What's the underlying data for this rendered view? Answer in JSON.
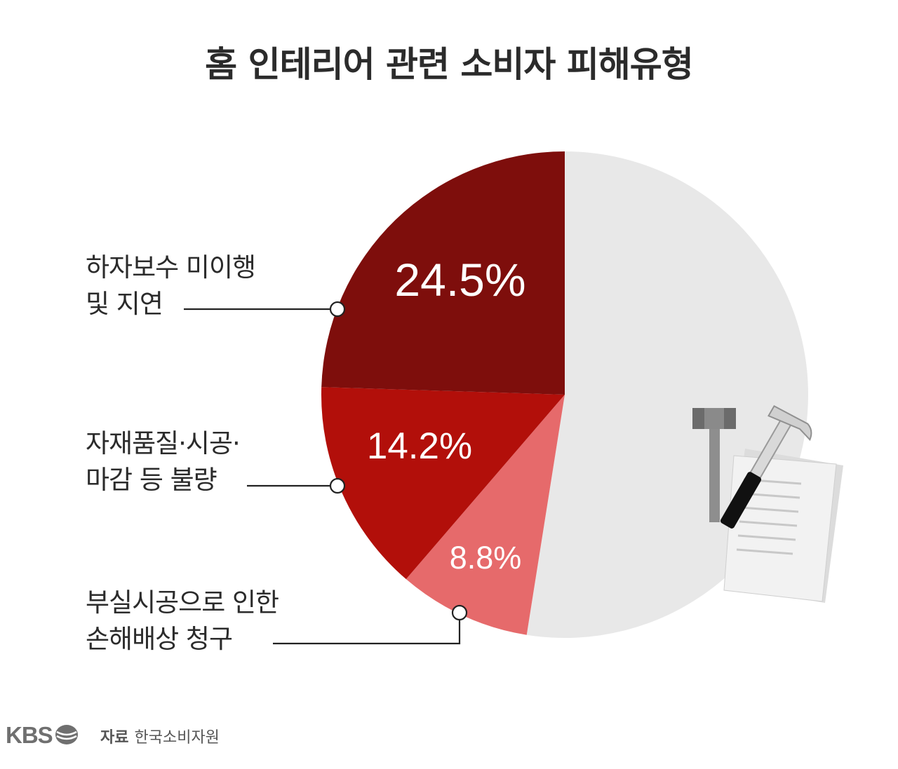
{
  "title": "홈 인테리어 관련 소비자 피해유형",
  "chart_data": {
    "type": "pie",
    "title": "홈 인테리어 관련 소비자 피해유형",
    "slices": [
      {
        "label": "",
        "value": 52.5,
        "color": "#e8e8e8"
      },
      {
        "label": "부실시공으로 인한 손해배상 청구",
        "value": 8.8,
        "value_label": "8.8%",
        "color": "#e66a6b"
      },
      {
        "label": "자재품질·시공· 마감 등 불량",
        "value": 14.2,
        "value_label": "14.2%",
        "color": "#b20f0a"
      },
      {
        "label": "하자보수 미이행 및 지연",
        "value": 24.5,
        "value_label": "24.5%",
        "color": "#7e0e0c"
      }
    ]
  },
  "labels": {
    "defect_repair": {
      "line1": "하자보수 미이행",
      "line2": "및 지연"
    },
    "material_quality": {
      "line1": "자재품질·시공·",
      "line2": "마감 등 불량"
    },
    "damage_claim": {
      "line1": "부실시공으로 인한",
      "line2": "손해배상 청구"
    }
  },
  "footer": {
    "logo": "KBS",
    "source_label": "자료",
    "source": "한국소비자원"
  },
  "icon": "hammer-and-documents-icon"
}
